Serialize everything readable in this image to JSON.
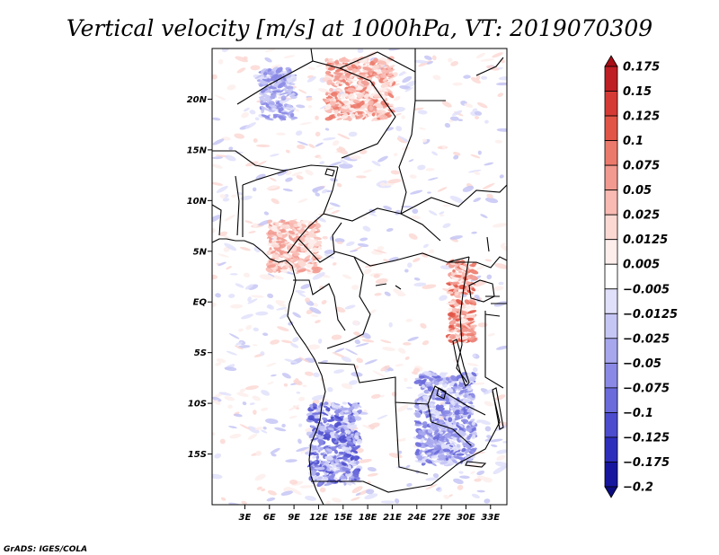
{
  "chart_data": {
    "type": "heatmap",
    "title": "Vertical velocity [m/s] at 1000hPa, VT: 2019070309",
    "variable": "Vertical velocity",
    "units": "m/s",
    "level": "1000hPa",
    "valid_time": "2019070309",
    "xlabel": "",
    "ylabel": "",
    "xlim": [
      -1,
      35
    ],
    "ylim": [
      -20,
      25
    ],
    "x_ticks": [
      {
        "value": 3,
        "label": "3E"
      },
      {
        "value": 6,
        "label": "6E"
      },
      {
        "value": 9,
        "label": "9E"
      },
      {
        "value": 12,
        "label": "12E"
      },
      {
        "value": 15,
        "label": "15E"
      },
      {
        "value": 18,
        "label": "18E"
      },
      {
        "value": 21,
        "label": "21E"
      },
      {
        "value": 24,
        "label": "24E"
      },
      {
        "value": 27,
        "label": "27E"
      },
      {
        "value": 30,
        "label": "30E"
      },
      {
        "value": 33,
        "label": "33E"
      }
    ],
    "y_ticks": [
      {
        "value": 20,
        "label": "20N"
      },
      {
        "value": 15,
        "label": "15N"
      },
      {
        "value": 10,
        "label": "10N"
      },
      {
        "value": 5,
        "label": "5N"
      },
      {
        "value": 0,
        "label": "EQ"
      },
      {
        "value": -5,
        "label": "5S"
      },
      {
        "value": -10,
        "label": "10S"
      },
      {
        "value": -15,
        "label": "15S"
      }
    ],
    "colorbar": {
      "levels": [
        "0.175",
        "0.15",
        "0.125",
        "0.1",
        "0.075",
        "0.05",
        "0.025",
        "0.0125",
        "0.005",
        "-0.005",
        "-0.0125",
        "-0.025",
        "-0.05",
        "-0.075",
        "-0.1",
        "-0.125",
        "-0.175",
        "-0.2"
      ],
      "colors": [
        "#a50f15",
        "#be1e24",
        "#d63a35",
        "#e25546",
        "#ec7a6c",
        "#f29a90",
        "#f8bab2",
        "#fcd8d3",
        "#fdeeec",
        "#ffffff",
        "#e0e0fb",
        "#c6c6f5",
        "#a7a7ee",
        "#8a8ae6",
        "#6b6bdc",
        "#4c4cce",
        "#2e2ebd",
        "#16169f",
        "#0c0c80"
      ]
    },
    "grid": false,
    "legend": "colorbar-right",
    "color_regions": [
      {
        "name": "red-band-sahara-north",
        "sign": "positive",
        "lon": [
          13,
          21
        ],
        "lat": [
          18,
          24
        ],
        "intensity": 0.1
      },
      {
        "name": "blue-band-sahara-north",
        "sign": "negative",
        "lon": [
          5,
          9
        ],
        "lat": [
          18,
          23
        ],
        "intensity": 0.075
      },
      {
        "name": "red-band-east-africa-rift",
        "sign": "positive",
        "lon": [
          28,
          31
        ],
        "lat": [
          -4,
          4
        ],
        "intensity": 0.125
      },
      {
        "name": "blue-patch-angola-south",
        "sign": "negative",
        "lon": [
          11,
          17
        ],
        "lat": [
          -18,
          -10
        ],
        "intensity": 0.125
      },
      {
        "name": "blue-patch-zambia",
        "sign": "negative",
        "lon": [
          24,
          31
        ],
        "lat": [
          -16,
          -7
        ],
        "intensity": 0.1
      },
      {
        "name": "red-patch-gulf-guinea",
        "sign": "positive",
        "lon": [
          6,
          12
        ],
        "lat": [
          3,
          8
        ],
        "intensity": 0.075
      }
    ]
  },
  "footer": {
    "credit": "GrADS: IGES/COLA"
  }
}
